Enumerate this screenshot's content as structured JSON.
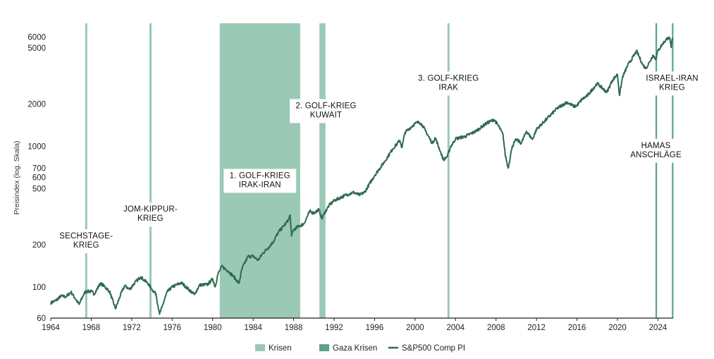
{
  "chart_data": {
    "type": "line",
    "y_scale": "log",
    "ylabel": "Preisindex (log. Skala)",
    "xlabel": "",
    "title": "",
    "xlim": [
      1964,
      2025.5
    ],
    "ylim": [
      60,
      7500
    ],
    "x_ticks": [
      1964,
      1968,
      1972,
      1976,
      1980,
      1984,
      1988,
      1992,
      1996,
      2000,
      2004,
      2008,
      2012,
      2016,
      2020,
      2024
    ],
    "y_ticks": [
      60,
      100,
      200,
      500,
      600,
      700,
      1000,
      2000,
      5000,
      6000
    ],
    "grid": false,
    "legend_position": "bottom-center",
    "colors": {
      "crisis": "#9ac9b5",
      "gaza_crisis": "#5aa487",
      "line": "#2f6b52",
      "axis": "#222222"
    },
    "series": [
      {
        "name": "S&P500 Comp PI",
        "points": [
          [
            1964.0,
            77
          ],
          [
            1964.5,
            80
          ],
          [
            1965.0,
            86
          ],
          [
            1965.5,
            85
          ],
          [
            1966.0,
            92
          ],
          [
            1966.8,
            75
          ],
          [
            1967.3,
            90
          ],
          [
            1967.5,
            93
          ],
          [
            1968.0,
            93
          ],
          [
            1968.3,
            89
          ],
          [
            1968.9,
            106
          ],
          [
            1969.3,
            101
          ],
          [
            1969.8,
            93
          ],
          [
            1970.4,
            70
          ],
          [
            1970.9,
            88
          ],
          [
            1971.3,
            102
          ],
          [
            1971.8,
            96
          ],
          [
            1972.3,
            107
          ],
          [
            1972.9,
            118
          ],
          [
            1973.2,
            112
          ],
          [
            1973.6,
            106
          ],
          [
            1974.0,
            96
          ],
          [
            1974.4,
            89
          ],
          [
            1974.75,
            64
          ],
          [
            1975.0,
            72
          ],
          [
            1975.5,
            92
          ],
          [
            1976.0,
            100
          ],
          [
            1976.9,
            107
          ],
          [
            1977.5,
            98
          ],
          [
            1978.2,
            88
          ],
          [
            1978.7,
            103
          ],
          [
            1979.5,
            104
          ],
          [
            1980.0,
            114
          ],
          [
            1980.25,
            100
          ],
          [
            1980.5,
            122
          ],
          [
            1980.9,
            140
          ],
          [
            1981.5,
            130
          ],
          [
            1982.0,
            120
          ],
          [
            1982.6,
            106
          ],
          [
            1982.9,
            135
          ],
          [
            1983.5,
            165
          ],
          [
            1984.0,
            165
          ],
          [
            1984.5,
            155
          ],
          [
            1985.0,
            175
          ],
          [
            1985.5,
            190
          ],
          [
            1986.0,
            210
          ],
          [
            1986.5,
            245
          ],
          [
            1987.0,
            270
          ],
          [
            1987.5,
            300
          ],
          [
            1987.65,
            325
          ],
          [
            1987.8,
            230
          ],
          [
            1988.0,
            255
          ],
          [
            1988.5,
            270
          ],
          [
            1989.0,
            280
          ],
          [
            1989.6,
            345
          ],
          [
            1990.0,
            335
          ],
          [
            1990.5,
            355
          ],
          [
            1990.8,
            305
          ],
          [
            1991.0,
            330
          ],
          [
            1991.5,
            380
          ],
          [
            1992.0,
            410
          ],
          [
            1993.0,
            445
          ],
          [
            1993.9,
            470
          ],
          [
            1994.5,
            450
          ],
          [
            1995.0,
            470
          ],
          [
            1996.0,
            620
          ],
          [
            1997.0,
            780
          ],
          [
            1997.8,
            960
          ],
          [
            1998.5,
            1100
          ],
          [
            1998.7,
            980
          ],
          [
            1999.0,
            1250
          ],
          [
            1999.5,
            1350
          ],
          [
            2000.0,
            1450
          ],
          [
            2000.4,
            1490
          ],
          [
            2000.7,
            1420
          ],
          [
            2001.0,
            1300
          ],
          [
            2001.7,
            1050
          ],
          [
            2002.0,
            1150
          ],
          [
            2002.5,
            920
          ],
          [
            2002.8,
            800
          ],
          [
            2003.2,
            850
          ],
          [
            2003.5,
            990
          ],
          [
            2004.0,
            1130
          ],
          [
            2005.0,
            1180
          ],
          [
            2006.0,
            1280
          ],
          [
            2007.0,
            1450
          ],
          [
            2007.8,
            1550
          ],
          [
            2008.3,
            1380
          ],
          [
            2008.7,
            1200
          ],
          [
            2008.9,
            880
          ],
          [
            2009.2,
            700
          ],
          [
            2009.6,
            1000
          ],
          [
            2010.0,
            1120
          ],
          [
            2010.5,
            1050
          ],
          [
            2011.0,
            1280
          ],
          [
            2011.6,
            1120
          ],
          [
            2012.0,
            1320
          ],
          [
            2013.0,
            1560
          ],
          [
            2014.0,
            1850
          ],
          [
            2015.0,
            2060
          ],
          [
            2015.7,
            1920
          ],
          [
            2016.0,
            1950
          ],
          [
            2016.5,
            2160
          ],
          [
            2017.0,
            2280
          ],
          [
            2018.0,
            2800
          ],
          [
            2018.95,
            2420
          ],
          [
            2019.5,
            2950
          ],
          [
            2020.0,
            3250
          ],
          [
            2020.2,
            2300
          ],
          [
            2020.5,
            3100
          ],
          [
            2021.0,
            3750
          ],
          [
            2021.9,
            4750
          ],
          [
            2022.5,
            3800
          ],
          [
            2022.8,
            3580
          ],
          [
            2023.2,
            4000
          ],
          [
            2023.5,
            4450
          ],
          [
            2023.8,
            4180
          ],
          [
            2024.0,
            4780
          ],
          [
            2024.5,
            5400
          ],
          [
            2025.0,
            5950
          ],
          [
            2025.2,
            5800
          ],
          [
            2025.3,
            5050
          ],
          [
            2025.45,
            5900
          ]
        ]
      }
    ],
    "crises": [
      {
        "start": 1967.4,
        "end": 1967.6
      },
      {
        "start": 1973.75,
        "end": 1973.95
      },
      {
        "start": 1980.7,
        "end": 1988.65
      },
      {
        "start": 1990.55,
        "end": 1991.15
      },
      {
        "start": 2003.2,
        "end": 2003.4
      }
    ],
    "gaza_crises": [
      {
        "start": 2023.76,
        "end": 2023.88
      },
      {
        "start": 2025.38,
        "end": 2025.5
      }
    ],
    "annotations": [
      {
        "lines": [
          "SECHSTAGE-",
          "KRIEG"
        ],
        "x": 1967.5,
        "y": 245
      },
      {
        "lines": [
          "JOM-KIPPUR-",
          "KRIEG"
        ],
        "x": 1973.85,
        "y": 380
      },
      {
        "lines": [
          "1. GOLF-KRIEG",
          "IRAK-IRAN"
        ],
        "x": 1984.67,
        "y": 660
      },
      {
        "lines": [
          "2. GOLF-KRIEG",
          "KUWAIT"
        ],
        "x": 1991.2,
        "y": 2070
      },
      {
        "lines": [
          "3. GOLF-KRIEG",
          "IRAK"
        ],
        "x": 2003.3,
        "y": 3250
      },
      {
        "lines": [
          "HAMAS",
          "ANSCHLÄGE"
        ],
        "x": 2023.8,
        "y": 1080
      },
      {
        "lines": [
          "ISRAEL-IRAN",
          "KRIEG"
        ],
        "x": 2025.4,
        "y": 3250
      }
    ],
    "legend": [
      {
        "label": "Krisen",
        "kind": "crisis"
      },
      {
        "label": "Gaza Krisen",
        "kind": "gaza_crisis"
      },
      {
        "label": "S&P500 Comp PI",
        "kind": "line"
      }
    ]
  }
}
